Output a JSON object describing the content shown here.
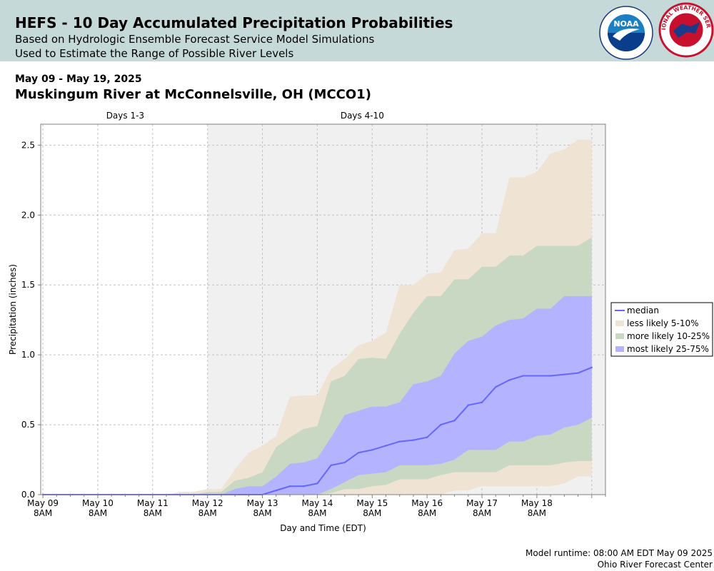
{
  "header": {
    "title": "HEFS - 10 Day Accumulated Precipitation Probabilities",
    "subtitle1": "Based on Hydrologic Ensemble Forecast Service Model Simulations",
    "subtitle2": "Used to Estimate the Range of Possible River Levels"
  },
  "logos": {
    "noara_text": "NOAA",
    "nws_text": "NATIONAL WEATHER SERVICE"
  },
  "date_range": "May 09 - May 19, 2025",
  "location": "Muskingum River at McConnelsville, OH (MCCO1)",
  "footer": {
    "runtime": "Model runtime: 08:00 AM EDT May 09 2025",
    "center": "Ohio River Forecast Center"
  },
  "colors": {
    "banner": "#c5dad8",
    "median": "#6666ff",
    "less_likely": "#efe3d4",
    "more_likely": "#c9d8c3",
    "most_likely": "#b3b3ff",
    "plot_bg_shaded": "#f0f0f0"
  },
  "chart_data": {
    "type": "area",
    "xlabel": "Day and Time (EDT)",
    "ylabel": "Precipitation (inches)",
    "ylim": [
      0,
      2.65
    ],
    "yticks": [
      "0.0",
      "0.5",
      "1.0",
      "1.5",
      "2.0",
      "2.5"
    ],
    "ytick_values": [
      0,
      0.5,
      1.0,
      1.5,
      2.0,
      2.5
    ],
    "x_range": [
      -0.04,
      10.25
    ],
    "xticks": [
      {
        "line1": "May 09",
        "line2": "8AM"
      },
      {
        "line1": "May 10",
        "line2": "8AM"
      },
      {
        "line1": "May 11",
        "line2": "8AM"
      },
      {
        "line1": "May 12",
        "line2": "8AM"
      },
      {
        "line1": "May 13",
        "line2": "8AM"
      },
      {
        "line1": "May 14",
        "line2": "8AM"
      },
      {
        "line1": "May 15",
        "line2": "8AM"
      },
      {
        "line1": "May 16",
        "line2": "8AM"
      },
      {
        "line1": "May 17",
        "line2": "8AM"
      },
      {
        "line1": "May 18",
        "line2": "8AM"
      }
    ],
    "periods": [
      {
        "label": "Days 1-3",
        "start": 0,
        "end": 3,
        "shaded": false
      },
      {
        "label": "Days 4-10",
        "start": 3,
        "end": 10.25,
        "shaded": true
      }
    ],
    "legend_position": "right",
    "legend": [
      "median",
      "less likely 5-10%",
      "more likely 10-25%",
      "most likely 25-75%"
    ],
    "x": [
      0,
      0.25,
      0.5,
      0.75,
      1,
      1.25,
      1.5,
      1.75,
      2,
      2.25,
      2.5,
      2.75,
      3,
      3.25,
      3.5,
      3.75,
      4,
      4.25,
      4.5,
      4.75,
      5,
      5.25,
      5.5,
      5.75,
      6,
      6.25,
      6.5,
      6.75,
      7,
      7.25,
      7.5,
      7.75,
      8,
      8.25,
      8.5,
      8.75,
      9,
      9.25,
      9.5,
      9.75,
      10
    ],
    "series": [
      {
        "name": "less likely 5-10%",
        "kind": "band",
        "lower": [
          0,
          0,
          0,
          0,
          0,
          0,
          0,
          0,
          0,
          0,
          0,
          0,
          0,
          0,
          0,
          0,
          0,
          0,
          0,
          0,
          0,
          0,
          0,
          0,
          0,
          0,
          0,
          0,
          0,
          0,
          0.03,
          0.03,
          0.06,
          0.06,
          0.06,
          0.06,
          0.06,
          0.06,
          0.08,
          0.13,
          0.13
        ],
        "upper": [
          0,
          0,
          0,
          0,
          0,
          0,
          0,
          0,
          0,
          0,
          0.02,
          0.02,
          0.04,
          0.04,
          0.18,
          0.3,
          0.35,
          0.42,
          0.7,
          0.71,
          0.71,
          0.9,
          0.97,
          1.07,
          1.1,
          1.16,
          1.5,
          1.5,
          1.58,
          1.59,
          1.75,
          1.76,
          1.87,
          1.87,
          2.27,
          2.27,
          2.31,
          2.44,
          2.47,
          2.54,
          2.54
        ]
      },
      {
        "name": "more likely 10-25%",
        "kind": "band",
        "lower": [
          0,
          0,
          0,
          0,
          0,
          0,
          0,
          0,
          0,
          0,
          0,
          0,
          0,
          0,
          0,
          0,
          0,
          0,
          0,
          0,
          0,
          0.01,
          0.04,
          0.04,
          0.06,
          0.07,
          0.11,
          0.11,
          0.11,
          0.14,
          0.16,
          0.16,
          0.16,
          0.16,
          0.21,
          0.21,
          0.21,
          0.21,
          0.23,
          0.24,
          0.24
        ],
        "upper": [
          0,
          0,
          0,
          0,
          0,
          0,
          0,
          0,
          0,
          0,
          0,
          0,
          0.02,
          0.02,
          0.1,
          0.12,
          0.16,
          0.34,
          0.41,
          0.47,
          0.49,
          0.81,
          0.85,
          0.97,
          0.98,
          0.97,
          1.15,
          1.3,
          1.42,
          1.42,
          1.54,
          1.54,
          1.63,
          1.63,
          1.71,
          1.71,
          1.78,
          1.78,
          1.78,
          1.78,
          1.84
        ]
      },
      {
        "name": "most likely 25-75%",
        "kind": "band",
        "lower": [
          0,
          0,
          0,
          0,
          0,
          0,
          0,
          0,
          0,
          0,
          0,
          0,
          0,
          0,
          0,
          0,
          0,
          0,
          0,
          0,
          0,
          0.04,
          0.09,
          0.14,
          0.15,
          0.16,
          0.21,
          0.21,
          0.21,
          0.22,
          0.25,
          0.32,
          0.32,
          0.32,
          0.38,
          0.38,
          0.42,
          0.43,
          0.48,
          0.5,
          0.55
        ],
        "upper": [
          0,
          0,
          0,
          0,
          0,
          0,
          0,
          0,
          0,
          0,
          0,
          0,
          0,
          0,
          0.04,
          0.06,
          0.06,
          0.13,
          0.22,
          0.23,
          0.26,
          0.41,
          0.57,
          0.6,
          0.63,
          0.63,
          0.66,
          0.79,
          0.81,
          0.85,
          1.01,
          1.1,
          1.13,
          1.21,
          1.25,
          1.26,
          1.33,
          1.33,
          1.42,
          1.42,
          1.42
        ]
      },
      {
        "name": "median",
        "kind": "line",
        "values": [
          0,
          0,
          0,
          0,
          0,
          0,
          0,
          0,
          0,
          0,
          0,
          0,
          0,
          0,
          0,
          0,
          0,
          0.03,
          0.06,
          0.06,
          0.08,
          0.21,
          0.23,
          0.3,
          0.32,
          0.35,
          0.38,
          0.39,
          0.41,
          0.5,
          0.53,
          0.64,
          0.66,
          0.77,
          0.82,
          0.85,
          0.85,
          0.85,
          0.86,
          0.87,
          0.91
        ]
      }
    ]
  }
}
